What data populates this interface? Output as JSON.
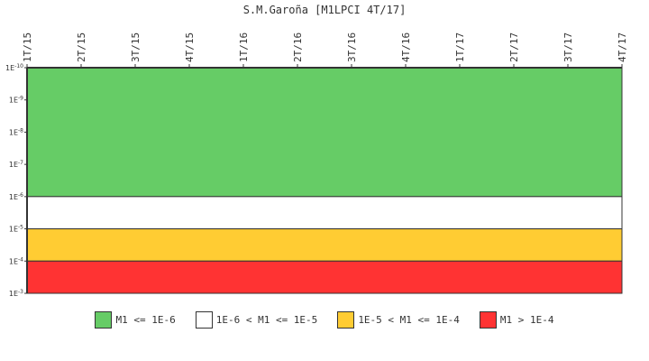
{
  "chart_data": {
    "type": "area",
    "title": "S.M.Garoña [M1LPCI 4T/17]",
    "x_categories": [
      "1T/15",
      "2T/15",
      "3T/15",
      "4T/15",
      "1T/16",
      "2T/16",
      "3T/16",
      "4T/16",
      "1T/17",
      "2T/17",
      "3T/17",
      "4T/17"
    ],
    "y_scale": "log",
    "y_reversed": true,
    "y_ticks": [
      {
        "label": "1E-10",
        "value": 1e-10
      },
      {
        "label": "1E-9",
        "value": 1e-09
      },
      {
        "label": "1E-8",
        "value": 1e-08
      },
      {
        "label": "1E-7",
        "value": 1e-07
      },
      {
        "label": "1E-6",
        "value": 1e-06
      },
      {
        "label": "1E-5",
        "value": 1e-05
      },
      {
        "label": "1E-4",
        "value": 0.0001
      },
      {
        "label": "1E-3",
        "value": 0.001
      }
    ],
    "bands": [
      {
        "name": "M1 <= 1E-6",
        "from": 1e-10,
        "to": 1e-06,
        "color": "#66cc66"
      },
      {
        "name": "1E-6 < M1 <= 1E-5",
        "from": 1e-06,
        "to": 1e-05,
        "color": "#ffffff"
      },
      {
        "name": "1E-5 < M1 <= 1E-4",
        "from": 1e-05,
        "to": 0.0001,
        "color": "#ffcc33"
      },
      {
        "name": "M1 > 1E-4",
        "from": 0.0001,
        "to": 0.001,
        "color": "#ff3333"
      }
    ],
    "grid": false,
    "legend_position": "bottom"
  }
}
